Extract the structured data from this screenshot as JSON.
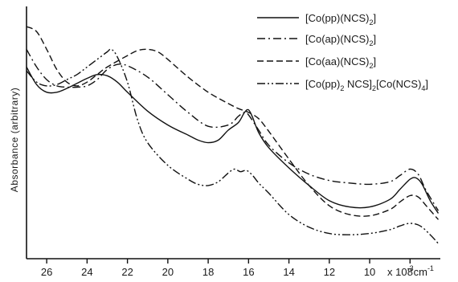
{
  "chart_data": {
    "type": "line",
    "title": "",
    "xlabel": "×10⁻³ cm⁻¹",
    "ylabel": "Absorbance (arbitrary)",
    "xlim": [
      27,
      6.5
    ],
    "ylim": [
      0,
      10
    ],
    "x_ticks": [
      26,
      24,
      22,
      20,
      18,
      16,
      14,
      12,
      10,
      8
    ],
    "x_tick_labels": [
      "26",
      "24",
      "22",
      "20",
      "18",
      "16",
      "14",
      "12",
      "10",
      "8"
    ],
    "x_unit": {
      "prefix": "x 10",
      "sup1": "-3",
      "mid": "cm",
      "sup2": "-1"
    },
    "grid": false,
    "legend_position": "top-right",
    "series": [
      {
        "name": "[Co(pp)(NCS)2]",
        "legend": {
          "a": "[Co(pp)(NCS)",
          "s1": "2",
          "b": "]"
        },
        "style": "solid",
        "points": [
          [
            27,
            7.6
          ],
          [
            26.5,
            6.9
          ],
          [
            26,
            6.6
          ],
          [
            25.5,
            6.6
          ],
          [
            25,
            6.75
          ],
          [
            24.5,
            6.95
          ],
          [
            24,
            7.15
          ],
          [
            23.5,
            7.3
          ],
          [
            23,
            7.25
          ],
          [
            22.5,
            7.0
          ],
          [
            22,
            6.6
          ],
          [
            21,
            5.85
          ],
          [
            20,
            5.3
          ],
          [
            19,
            4.9
          ],
          [
            18.5,
            4.7
          ],
          [
            18,
            4.6
          ],
          [
            17.5,
            4.7
          ],
          [
            17,
            5.1
          ],
          [
            16.5,
            5.4
          ],
          [
            16.2,
            5.8
          ],
          [
            16,
            5.9
          ],
          [
            15.8,
            5.6
          ],
          [
            15.5,
            5.0
          ],
          [
            15,
            4.4
          ],
          [
            14,
            3.6
          ],
          [
            13,
            2.9
          ],
          [
            12,
            2.3
          ],
          [
            11,
            2.05
          ],
          [
            10,
            2.05
          ],
          [
            9,
            2.35
          ],
          [
            8.5,
            2.75
          ],
          [
            8,
            3.15
          ],
          [
            7.7,
            3.2
          ],
          [
            7.4,
            2.95
          ],
          [
            7,
            2.3
          ],
          [
            6.6,
            1.8
          ]
        ]
      },
      {
        "name": "[Co(ap)(NCS)2]",
        "legend": {
          "a": "[Co(ap)(NCS)",
          "s1": "2",
          "b": "]"
        },
        "style": "dashdot",
        "points": [
          [
            27,
            8.3
          ],
          [
            26.5,
            7.6
          ],
          [
            26,
            7.1
          ],
          [
            25.5,
            6.85
          ],
          [
            25,
            6.8
          ],
          [
            24.5,
            6.8
          ],
          [
            24,
            6.85
          ],
          [
            23.5,
            7.1
          ],
          [
            23,
            7.5
          ],
          [
            22.5,
            7.7
          ],
          [
            22,
            7.65
          ],
          [
            21,
            7.2
          ],
          [
            20,
            6.5
          ],
          [
            19,
            5.8
          ],
          [
            18,
            5.25
          ],
          [
            17,
            5.3
          ],
          [
            16.5,
            5.65
          ],
          [
            16.2,
            5.8
          ],
          [
            16,
            5.7
          ],
          [
            15.5,
            5.1
          ],
          [
            15,
            4.5
          ],
          [
            14,
            3.8
          ],
          [
            13,
            3.35
          ],
          [
            12,
            3.1
          ],
          [
            11,
            3.0
          ],
          [
            10,
            2.95
          ],
          [
            9,
            3.05
          ],
          [
            8.5,
            3.3
          ],
          [
            8,
            3.55
          ],
          [
            7.6,
            3.35
          ],
          [
            7.2,
            2.7
          ],
          [
            6.6,
            1.9
          ]
        ]
      },
      {
        "name": "[Co(aa)(NCS)2]",
        "legend": {
          "a": "[Co(aa)(NCS)",
          "s1": "2",
          "b": "]"
        },
        "style": "dashed",
        "points": [
          [
            27,
            9.2
          ],
          [
            26.5,
            9.0
          ],
          [
            26,
            8.3
          ],
          [
            25.5,
            7.5
          ],
          [
            25,
            7.0
          ],
          [
            24.5,
            6.85
          ],
          [
            24,
            7.0
          ],
          [
            23.5,
            7.3
          ],
          [
            23,
            7.6
          ],
          [
            22,
            8.05
          ],
          [
            21.5,
            8.25
          ],
          [
            21,
            8.3
          ],
          [
            20.5,
            8.2
          ],
          [
            20,
            7.9
          ],
          [
            19,
            7.2
          ],
          [
            18,
            6.6
          ],
          [
            17,
            6.15
          ],
          [
            16.5,
            5.95
          ],
          [
            16,
            5.8
          ],
          [
            15.5,
            5.55
          ],
          [
            15,
            5.05
          ],
          [
            14,
            3.95
          ],
          [
            13,
            2.9
          ],
          [
            12,
            2.1
          ],
          [
            11,
            1.75
          ],
          [
            10,
            1.7
          ],
          [
            9,
            1.95
          ],
          [
            8.5,
            2.25
          ],
          [
            8,
            2.5
          ],
          [
            7.6,
            2.45
          ],
          [
            7.2,
            2.1
          ],
          [
            6.6,
            1.55
          ]
        ]
      },
      {
        "name": "[Co(pp)2NCS]2[Co(NCS)4]",
        "legend": {
          "a": "[Co(pp)",
          "s1": "2",
          "b": " NCS]",
          "s2": "2",
          "c": "[Co(NCS)",
          "s3": "4",
          "d": "]"
        },
        "style": "dashdotdot",
        "points": [
          [
            27,
            7.45
          ],
          [
            26.5,
            7.0
          ],
          [
            26,
            6.85
          ],
          [
            25.5,
            6.9
          ],
          [
            25,
            7.1
          ],
          [
            24.5,
            7.3
          ],
          [
            24,
            7.6
          ],
          [
            23.5,
            7.9
          ],
          [
            23,
            8.2
          ],
          [
            22.8,
            8.3
          ],
          [
            22.5,
            8.0
          ],
          [
            22,
            7.0
          ],
          [
            21.5,
            5.5
          ],
          [
            21,
            4.6
          ],
          [
            20,
            3.7
          ],
          [
            19,
            3.15
          ],
          [
            18.5,
            2.95
          ],
          [
            18,
            2.9
          ],
          [
            17.5,
            3.05
          ],
          [
            17,
            3.4
          ],
          [
            16.7,
            3.55
          ],
          [
            16.4,
            3.45
          ],
          [
            16.1,
            3.5
          ],
          [
            15.8,
            3.3
          ],
          [
            15.5,
            3.0
          ],
          [
            15,
            2.6
          ],
          [
            14,
            1.75
          ],
          [
            13,
            1.25
          ],
          [
            12,
            1.0
          ],
          [
            11,
            0.95
          ],
          [
            10,
            1.0
          ],
          [
            9,
            1.15
          ],
          [
            8.5,
            1.3
          ],
          [
            8,
            1.4
          ],
          [
            7.5,
            1.3
          ],
          [
            7,
            0.95
          ],
          [
            6.6,
            0.6
          ]
        ]
      }
    ]
  }
}
